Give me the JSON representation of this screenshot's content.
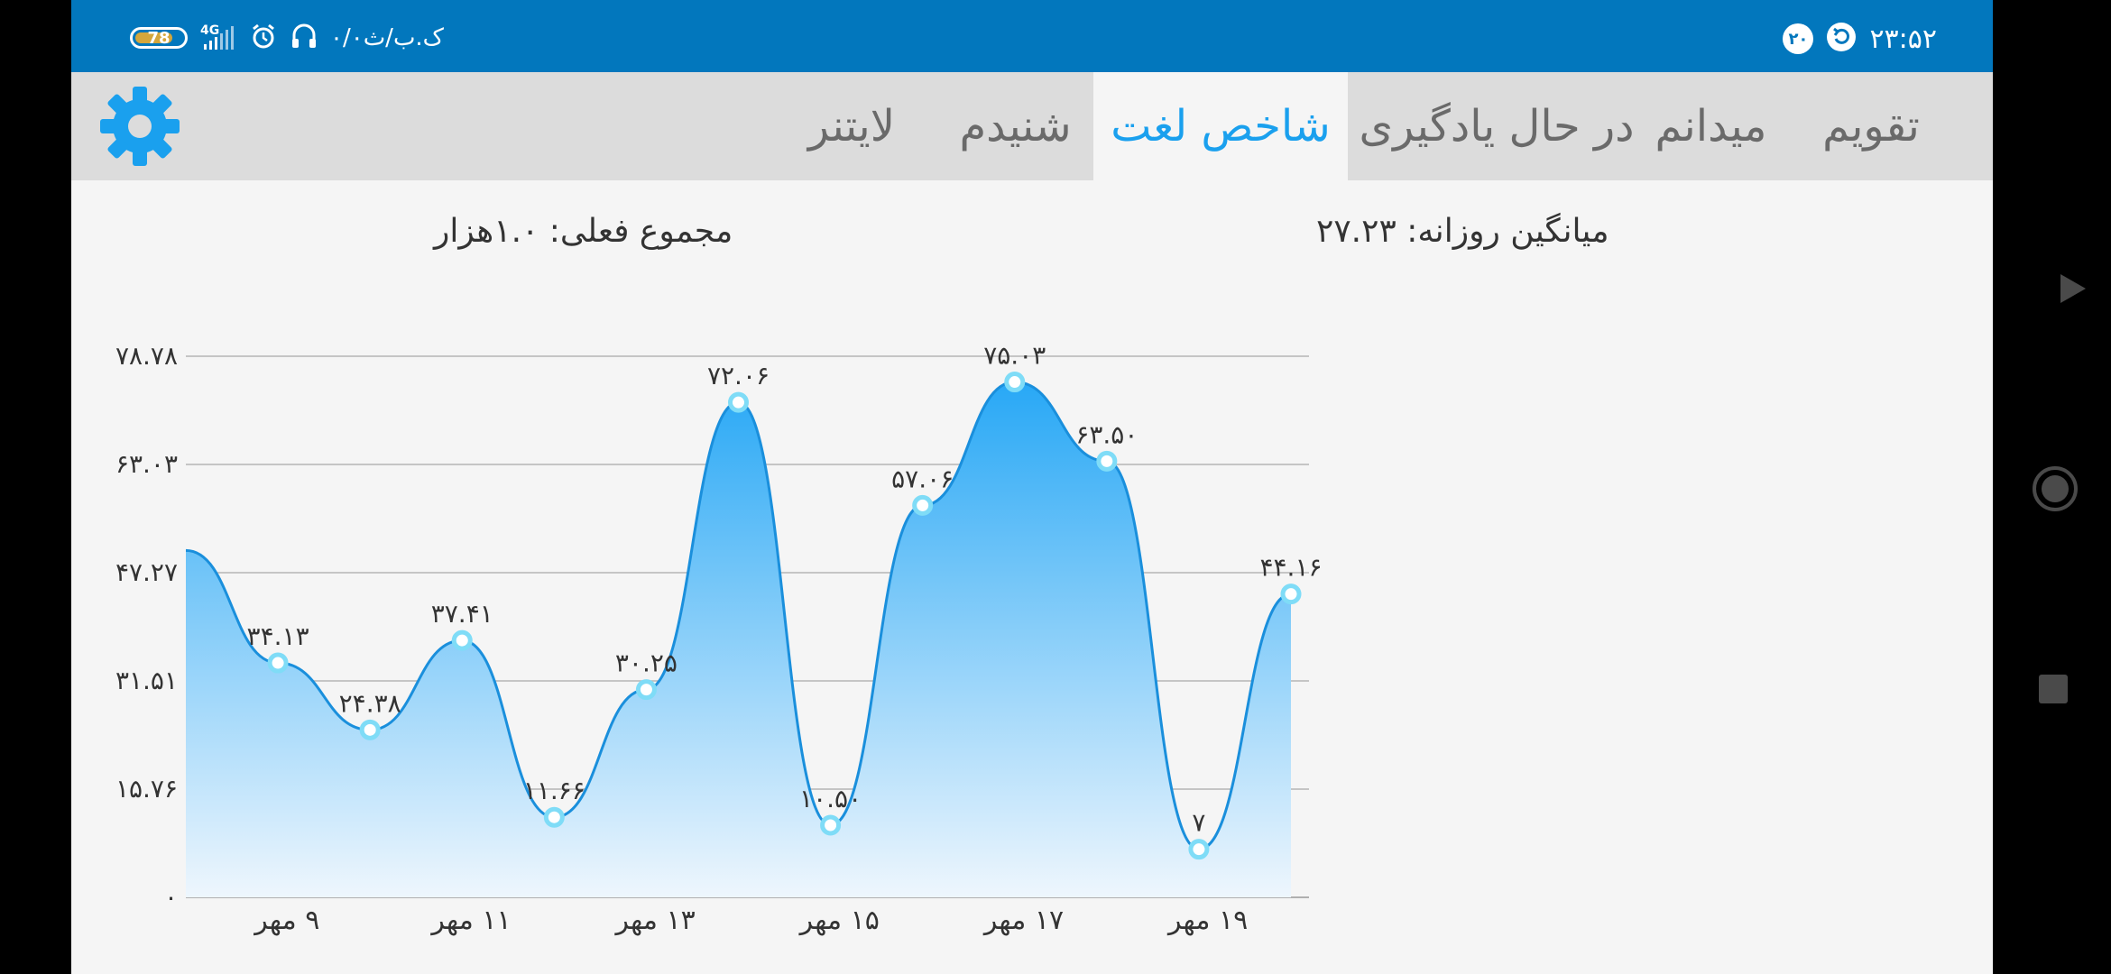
{
  "status_bar": {
    "time": "۲۳:۵۲",
    "badge_number": "۲۰",
    "battery_level": "78",
    "network": "4G",
    "data_speed": "۰/۰ک.ب/ث"
  },
  "tabs": [
    {
      "label": "تقویم",
      "active": false
    },
    {
      "label": "میدانم",
      "active": false
    },
    {
      "label": "در حال یادگیری",
      "active": false
    },
    {
      "label": "شاخص لغت",
      "active": true
    },
    {
      "label": "شنیدم",
      "active": false
    },
    {
      "label": "لایتنر",
      "active": false
    }
  ],
  "summary": {
    "daily_average": "میانگین روزانه: ۲۷.۲۳",
    "current_total": "مجموع فعلی: ۱.۰هزار"
  },
  "colors": {
    "status_bar": "#0277bd",
    "accent": "#1aa0ee",
    "area_top": "#22a6f5"
  },
  "chart_data": {
    "type": "area",
    "y_tick_labels": [
      "۰",
      "۱۵.۷۶",
      "۳۱.۵۱",
      "۴۷.۲۷",
      "۶۳.۰۳",
      "۷۸.۷۸"
    ],
    "y_ticks": [
      0,
      15.76,
      31.51,
      47.27,
      63.03,
      78.78
    ],
    "ylim": [
      0,
      78.78
    ],
    "x_tick_labels": [
      "۹ مهر",
      "۱۱ مهر",
      "۱۳ مهر",
      "۱۵ مهر",
      "۱۷ مهر",
      "۱۹ مهر"
    ],
    "x_ticks": [
      9,
      11,
      13,
      15,
      17,
      19
    ],
    "xlim": [
      7.9,
      19.9
    ],
    "start_value": 50.5,
    "points": [
      {
        "x": 8.9,
        "y": 34.13,
        "label": "۳۴.۱۳"
      },
      {
        "x": 9.9,
        "y": 24.38,
        "label": "۲۴.۳۸"
      },
      {
        "x": 10.9,
        "y": 37.41,
        "label": "۳۷.۴۱"
      },
      {
        "x": 11.9,
        "y": 11.66,
        "label": "۱۱.۶۶"
      },
      {
        "x": 12.9,
        "y": 30.25,
        "label": "۳۰.۲۵"
      },
      {
        "x": 13.9,
        "y": 72.06,
        "label": "۷۲.۰۶"
      },
      {
        "x": 14.9,
        "y": 10.5,
        "label": "۱۰.۵۰"
      },
      {
        "x": 15.9,
        "y": 57.06,
        "label": "۵۷.۰۶"
      },
      {
        "x": 16.9,
        "y": 75.03,
        "label": "۷۵.۰۳"
      },
      {
        "x": 17.9,
        "y": 63.5,
        "label": "۶۳.۵۰"
      },
      {
        "x": 18.9,
        "y": 7,
        "label": "۷"
      },
      {
        "x": 19.9,
        "y": 44.16,
        "label": "۴۴.۱۶"
      }
    ],
    "grid": true
  }
}
